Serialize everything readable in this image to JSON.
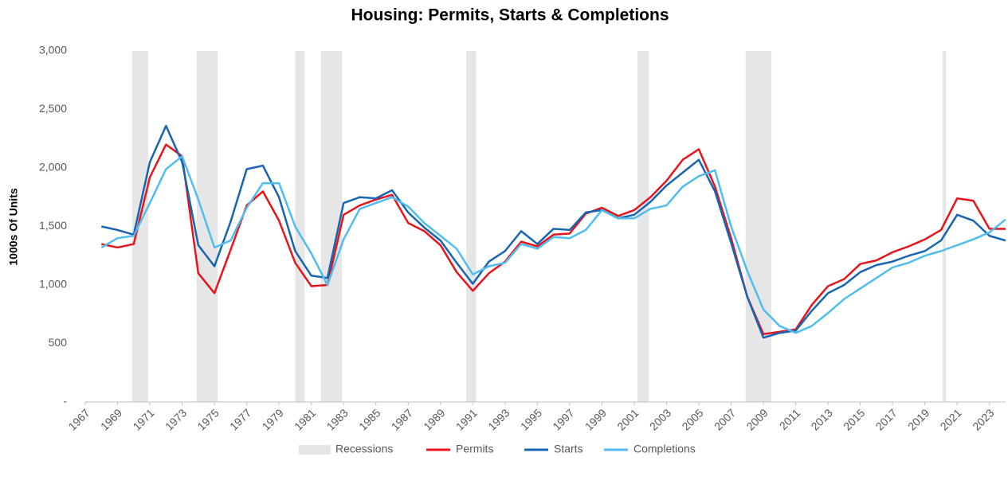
{
  "chart_data": {
    "type": "line",
    "title": "Housing: Permits, Starts & Completions",
    "y_label": "1000s Of Units",
    "x": [
      1968,
      1969,
      1970,
      1971,
      1972,
      1973,
      1974,
      1975,
      1976,
      1977,
      1978,
      1979,
      1980,
      1981,
      1982,
      1983,
      1984,
      1985,
      1986,
      1987,
      1988,
      1989,
      1990,
      1991,
      1992,
      1993,
      1994,
      1995,
      1996,
      1997,
      1998,
      1999,
      2000,
      2001,
      2002,
      2003,
      2004,
      2005,
      2006,
      2007,
      2008,
      2009,
      2010,
      2011,
      2012,
      2013,
      2014,
      2015,
      2016,
      2017,
      2018,
      2019,
      2020,
      2021,
      2022,
      2023,
      2024
    ],
    "series": [
      {
        "name": "Permits",
        "color": "#e8141b",
        "values": [
          1350,
          1320,
          1350,
          1920,
          2200,
          2100,
          1100,
          930,
          1300,
          1680,
          1800,
          1550,
          1190,
          990,
          1000,
          1600,
          1680,
          1730,
          1770,
          1530,
          1460,
          1340,
          1110,
          950,
          1100,
          1200,
          1370,
          1330,
          1430,
          1440,
          1610,
          1660,
          1590,
          1640,
          1750,
          1890,
          2070,
          2160,
          1840,
          1400,
          900,
          580,
          600,
          620,
          830,
          990,
          1050,
          1180,
          1210,
          1280,
          1330,
          1390,
          1470,
          1740,
          1720,
          1480,
          1480
        ]
      },
      {
        "name": "Starts",
        "color": "#1764b3",
        "values": [
          1500,
          1470,
          1430,
          2050,
          2360,
          2050,
          1340,
          1160,
          1540,
          1990,
          2020,
          1750,
          1290,
          1080,
          1060,
          1700,
          1750,
          1740,
          1810,
          1620,
          1490,
          1380,
          1190,
          1010,
          1200,
          1290,
          1460,
          1350,
          1480,
          1470,
          1620,
          1640,
          1570,
          1600,
          1710,
          1850,
          1960,
          2070,
          1800,
          1360,
          900,
          550,
          590,
          610,
          780,
          930,
          1000,
          1110,
          1170,
          1200,
          1250,
          1290,
          1380,
          1600,
          1550,
          1420,
          1380
        ]
      },
      {
        "name": "Completions",
        "color": "#4fbdf0",
        "values": [
          1320,
          1400,
          1420,
          1700,
          1990,
          2100,
          1730,
          1320,
          1380,
          1660,
          1870,
          1870,
          1500,
          1270,
          1000,
          1390,
          1650,
          1700,
          1750,
          1670,
          1530,
          1420,
          1310,
          1090,
          1160,
          1190,
          1350,
          1310,
          1410,
          1400,
          1470,
          1640,
          1570,
          1570,
          1650,
          1680,
          1840,
          1930,
          1980,
          1500,
          1120,
          790,
          650,
          590,
          650,
          760,
          880,
          970,
          1060,
          1150,
          1190,
          1250,
          1290,
          1340,
          1390,
          1450,
          1560
        ]
      }
    ],
    "shading": {
      "name": "Recessions",
      "color": "#e6e6e6",
      "ranges": [
        [
          1969.9,
          1970.9
        ],
        [
          1973.9,
          1975.2
        ],
        [
          1980.0,
          1980.6
        ],
        [
          1981.6,
          1982.9
        ],
        [
          1990.6,
          1991.2
        ],
        [
          2001.2,
          2001.9
        ],
        [
          2007.9,
          2009.5
        ],
        [
          2020.1,
          2020.3
        ]
      ]
    },
    "xlim": [
      1967,
      2024
    ],
    "xticks": [
      1967,
      1969,
      1971,
      1973,
      1975,
      1977,
      1979,
      1981,
      1983,
      1985,
      1987,
      1989,
      1991,
      1993,
      1995,
      1997,
      1999,
      2001,
      2003,
      2005,
      2007,
      2009,
      2011,
      2013,
      2015,
      2017,
      2019,
      2021,
      2023
    ],
    "ylim": [
      0,
      3000
    ],
    "yticks": [
      {
        "value": 0,
        "label": "-"
      },
      500,
      {
        "value": 1000,
        "label": "1,000"
      },
      {
        "value": 1500,
        "label": "1,500"
      },
      {
        "value": 2000,
        "label": "2,000"
      },
      {
        "value": 2500,
        "label": "2,500"
      },
      {
        "value": 3000,
        "label": "3,000"
      }
    ],
    "grid": false,
    "legend": "bottom"
  }
}
